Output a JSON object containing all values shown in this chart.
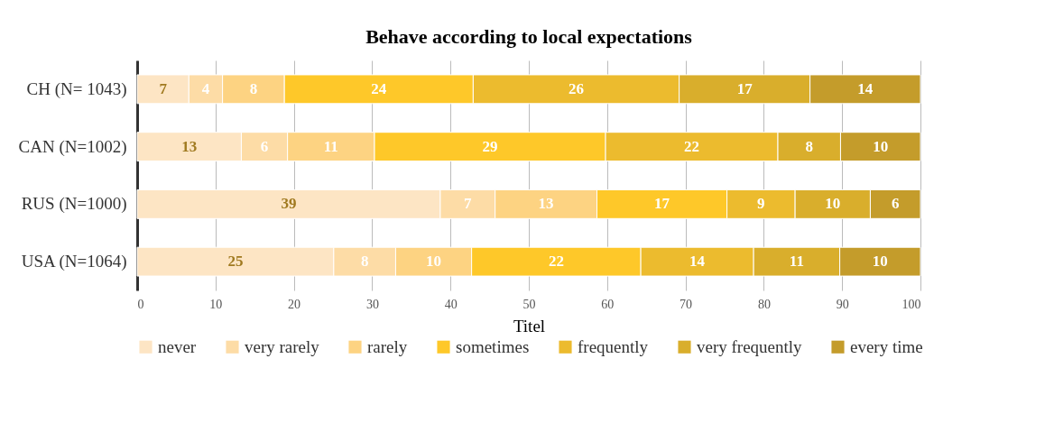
{
  "chart_data": {
    "type": "bar",
    "orientation": "horizontal",
    "stacked": true,
    "title": "Behave according to local expectations",
    "xlabel": "Titel",
    "categories": [
      "CH (N= 1043)",
      "CAN (N=1002)",
      "RUS (N=1000)",
      "USA (N=1064)"
    ],
    "series": [
      {
        "name": "never",
        "color": "#fde5c4",
        "values": [
          6.6,
          13.3,
          38.7,
          25.1
        ],
        "value_labels": [
          "7",
          "13",
          "39",
          "25"
        ]
      },
      {
        "name": "very rarely",
        "color": "#fddca6",
        "values": [
          4.3,
          5.9,
          7,
          7.9
        ],
        "value_labels": [
          "4",
          "6",
          "7",
          "8"
        ]
      },
      {
        "name": "rarely",
        "color": "#fdd382",
        "values": [
          7.9,
          11.1,
          13,
          9.7
        ],
        "value_labels": [
          "8",
          "11",
          "13",
          "10"
        ]
      },
      {
        "name": "sometimes",
        "color": "#fec829",
        "values": [
          24.1,
          29.5,
          16.6,
          21.6
        ],
        "value_labels": [
          "24",
          "29",
          "17",
          "22"
        ]
      },
      {
        "name": "frequently",
        "color": "#ecbb2e",
        "values": [
          26.3,
          22,
          8.7,
          14.4
        ],
        "value_labels": [
          "26",
          "22",
          "9",
          "14"
        ]
      },
      {
        "name": "very frequently",
        "color": "#d9ae2c",
        "values": [
          16.7,
          8,
          9.6,
          11
        ],
        "value_labels": [
          "17",
          "8",
          "10",
          "11"
        ]
      },
      {
        "name": "every time",
        "color": "#c49c2b",
        "values": [
          14.1,
          10.2,
          6.4,
          10.3
        ],
        "value_labels": [
          "14",
          "10",
          "6",
          "10"
        ]
      }
    ],
    "xlim": [
      0,
      100
    ],
    "xticks": [
      0,
      10,
      20,
      30,
      40,
      50,
      60,
      70,
      80,
      90,
      100
    ],
    "grid": "x",
    "legend": "bottom"
  }
}
